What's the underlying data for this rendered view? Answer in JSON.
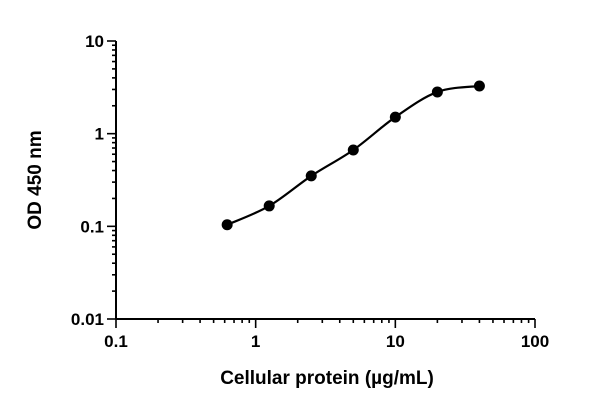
{
  "chart_data": {
    "type": "line",
    "title": "",
    "xlabel": "Cellular protein (µg/mL)",
    "ylabel": "OD 450 nm",
    "xscale": "log",
    "yscale": "log",
    "xlim": [
      0.1,
      100
    ],
    "ylim": [
      0.01,
      10
    ],
    "xticks": [
      "0.1",
      "1",
      "10",
      "100"
    ],
    "yticks": [
      "0.01",
      "0.1",
      "1",
      "10"
    ],
    "grid": false,
    "legend": null,
    "series": [
      {
        "name": "Cellular protein",
        "marker": "circle",
        "color": "#000000",
        "fit": "sigmoidal curve",
        "x": [
          0.625,
          1.25,
          2.5,
          5,
          10,
          20,
          40
        ],
        "y": [
          0.104,
          0.166,
          0.35,
          0.667,
          1.51,
          2.82,
          3.27
        ]
      }
    ]
  }
}
